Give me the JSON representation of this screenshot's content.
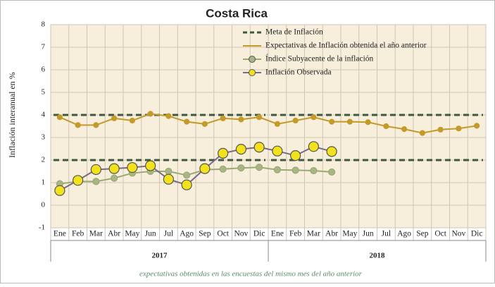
{
  "chart_data": {
    "type": "line",
    "title": "Costa Rica",
    "y_label": "Inflación interanual en %",
    "footnote": "expectativas obtenidas en las encuestas del mismo mes del año anterior",
    "categories": [
      "Ene",
      "Feb",
      "Mar",
      "Abr",
      "May",
      "Jun",
      "Jul",
      "Ago",
      "Sep",
      "Oct",
      "Nov",
      "Dic",
      "Ene",
      "Feb",
      "Mar",
      "Abr",
      "May",
      "Jun",
      "Jul",
      "Ago",
      "Sep",
      "Oct",
      "Nov",
      "Dic"
    ],
    "groups": [
      "2017",
      "2018"
    ],
    "ylim": [
      -1,
      8
    ],
    "yticks": [
      -1,
      0,
      1,
      2,
      3,
      4,
      5,
      6,
      7,
      8
    ],
    "grid": true,
    "legend": "top-right",
    "series": [
      {
        "name": "Meta de Inflación",
        "color": "#3d5a40",
        "style": "dashed",
        "values": [
          4,
          4,
          4,
          4,
          4,
          4,
          4,
          4,
          4,
          4,
          4,
          4,
          4,
          4,
          4,
          4,
          4,
          4,
          4,
          4,
          4,
          4,
          4,
          4
        ],
        "lower_values": [
          2,
          2,
          2,
          2,
          2,
          2,
          2,
          2,
          2,
          2,
          2,
          2,
          2,
          2,
          2,
          2,
          2,
          2,
          2,
          2,
          2,
          2,
          2,
          2
        ]
      },
      {
        "name": "Expectativas de Inflación obtenida el año anterior",
        "color": "#c49a2a",
        "values": [
          3.9,
          3.55,
          3.55,
          3.85,
          3.75,
          4.05,
          3.95,
          3.7,
          3.6,
          3.85,
          3.8,
          3.9,
          3.6,
          3.75,
          3.9,
          3.7,
          3.7,
          3.68,
          3.5,
          3.37,
          3.2,
          3.35,
          3.4,
          3.52
        ]
      },
      {
        "name": "Índice Subyacente de la inflación",
        "color": "#9aaa72",
        "marker": "#a9b585",
        "values": [
          0.95,
          1.05,
          1.05,
          1.2,
          1.42,
          1.5,
          1.5,
          1.33,
          1.57,
          1.6,
          1.65,
          1.68,
          1.57,
          1.55,
          1.53,
          1.47,
          null,
          null,
          null,
          null,
          null,
          null,
          null,
          null
        ]
      },
      {
        "name": "Inflación Observada",
        "color": "#7a6a86",
        "marker": "#f2e21c",
        "values": [
          0.65,
          1.1,
          1.58,
          1.62,
          1.67,
          1.75,
          1.15,
          0.9,
          1.62,
          2.3,
          2.48,
          2.57,
          2.4,
          2.2,
          2.6,
          2.38,
          null,
          null,
          null,
          null,
          null,
          null,
          null,
          null
        ]
      }
    ]
  }
}
